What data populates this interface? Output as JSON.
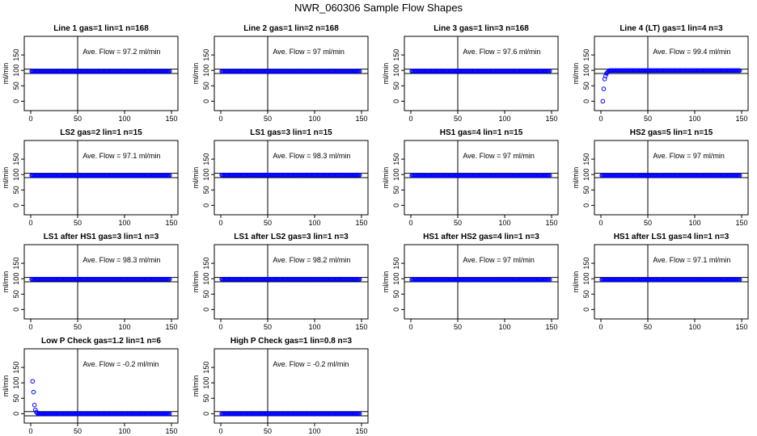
{
  "title": "NWR_060306  Sample Flow Shapes",
  "colors": {
    "points": "#0000ff",
    "axes": "#000000",
    "lines": "#000000"
  },
  "chart_data": [
    {
      "type": "scatter",
      "title": "Line 1 gas=1 lin=1 n=168",
      "ylabel": "ml/min",
      "annotation": "Ave. Flow =  97.2  ml/min",
      "xlim": [
        0,
        150
      ],
      "ylim": [
        -20,
        200
      ],
      "xticks": [
        "0",
        "50",
        "100",
        "150"
      ],
      "yticks": [
        "0",
        "50",
        "100",
        "150"
      ],
      "ref_lines_y": [
        90,
        104
      ],
      "ref_line_x": 50,
      "profile": "flat",
      "level": 97.2
    },
    {
      "type": "scatter",
      "title": "Line 2 gas=1 lin=2 n=168",
      "ylabel": "ml/min",
      "annotation": "Ave. Flow =  97  ml/min",
      "xlim": [
        0,
        150
      ],
      "ylim": [
        -20,
        200
      ],
      "xticks": [
        "0",
        "50",
        "100",
        "150"
      ],
      "yticks": [
        "0",
        "50",
        "100",
        "150"
      ],
      "ref_lines_y": [
        90,
        104
      ],
      "ref_line_x": 50,
      "profile": "flat",
      "level": 97
    },
    {
      "type": "scatter",
      "title": "Line 3 gas=1 lin=3 n=168",
      "ylabel": "ml/min",
      "annotation": "Ave. Flow =  97.6  ml/min",
      "xlim": [
        0,
        150
      ],
      "ylim": [
        -20,
        200
      ],
      "xticks": [
        "0",
        "50",
        "100",
        "150"
      ],
      "yticks": [
        "0",
        "50",
        "100",
        "150"
      ],
      "ref_lines_y": [
        90,
        104
      ],
      "ref_line_x": 50,
      "profile": "flat",
      "level": 97.6
    },
    {
      "type": "scatter",
      "title": "Line 4 (LT) gas=1 lin=4 n=3",
      "ylabel": "ml/min",
      "annotation": "Ave. Flow =  99.4  ml/min",
      "xlim": [
        0,
        150
      ],
      "ylim": [
        -20,
        200
      ],
      "xticks": [
        "0",
        "50",
        "100",
        "150"
      ],
      "yticks": [
        "0",
        "50",
        "100",
        "150"
      ],
      "ref_lines_y": [
        90,
        104
      ],
      "ref_line_x": 50,
      "profile": "rise",
      "level": 99.4,
      "start_points": [
        [
          2,
          0
        ],
        [
          3,
          40
        ],
        [
          4,
          72
        ],
        [
          5,
          82
        ],
        [
          6,
          90
        ],
        [
          7,
          94
        ],
        [
          8,
          96
        ]
      ]
    },
    {
      "type": "scatter",
      "title": "LS2 gas=2 lin=1 n=15",
      "ylabel": "ml/min",
      "annotation": "Ave. Flow =  97.1  ml/min",
      "xlim": [
        0,
        150
      ],
      "ylim": [
        -20,
        200
      ],
      "xticks": [
        "0",
        "50",
        "100",
        "150"
      ],
      "yticks": [
        "0",
        "50",
        "100",
        "150"
      ],
      "ref_lines_y": [
        90,
        104
      ],
      "ref_line_x": 50,
      "profile": "flat",
      "level": 97.1
    },
    {
      "type": "scatter",
      "title": "LS1 gas=3 lin=1 n=15",
      "ylabel": "ml/min",
      "annotation": "Ave. Flow =  98.3  ml/min",
      "xlim": [
        0,
        150
      ],
      "ylim": [
        -20,
        200
      ],
      "xticks": [
        "0",
        "50",
        "100",
        "150"
      ],
      "yticks": [
        "0",
        "50",
        "100",
        "150"
      ],
      "ref_lines_y": [
        90,
        104
      ],
      "ref_line_x": 50,
      "profile": "flat",
      "level": 98.3
    },
    {
      "type": "scatter",
      "title": "HS1 gas=4 lin=1 n=15",
      "ylabel": "ml/min",
      "annotation": "Ave. Flow =  97  ml/min",
      "xlim": [
        0,
        150
      ],
      "ylim": [
        -20,
        200
      ],
      "xticks": [
        "0",
        "50",
        "100",
        "150"
      ],
      "yticks": [
        "0",
        "50",
        "100",
        "150"
      ],
      "ref_lines_y": [
        90,
        104
      ],
      "ref_line_x": 50,
      "profile": "flat",
      "level": 97
    },
    {
      "type": "scatter",
      "title": "HS2 gas=5 lin=1 n=15",
      "ylabel": "ml/min",
      "annotation": "Ave. Flow =  97  ml/min",
      "xlim": [
        0,
        150
      ],
      "ylim": [
        -20,
        200
      ],
      "xticks": [
        "0",
        "50",
        "100",
        "150"
      ],
      "yticks": [
        "0",
        "50",
        "100",
        "150"
      ],
      "ref_lines_y": [
        90,
        104
      ],
      "ref_line_x": 50,
      "profile": "flat",
      "level": 97
    },
    {
      "type": "scatter",
      "title": "LS1 after HS1 gas=3 lin=1 n=3",
      "ylabel": "ml/min",
      "annotation": "Ave. Flow =  98.3  ml/min",
      "xlim": [
        0,
        150
      ],
      "ylim": [
        -20,
        200
      ],
      "xticks": [
        "0",
        "50",
        "100",
        "150"
      ],
      "yticks": [
        "0",
        "50",
        "100",
        "150"
      ],
      "ref_lines_y": [
        90,
        104
      ],
      "ref_line_x": 50,
      "profile": "flat",
      "level": 98.3
    },
    {
      "type": "scatter",
      "title": "LS1 after LS2 gas=3 lin=1 n=3",
      "ylabel": "ml/min",
      "annotation": "Ave. Flow =  98.2  ml/min",
      "xlim": [
        0,
        150
      ],
      "ylim": [
        -20,
        200
      ],
      "xticks": [
        "0",
        "50",
        "100",
        "150"
      ],
      "yticks": [
        "0",
        "50",
        "100",
        "150"
      ],
      "ref_lines_y": [
        90,
        104
      ],
      "ref_line_x": 50,
      "profile": "flat",
      "level": 98.2
    },
    {
      "type": "scatter",
      "title": "HS1 after HS2 gas=4 lin=1 n=3",
      "ylabel": "ml/min",
      "annotation": "Ave. Flow =  97  ml/min",
      "xlim": [
        0,
        150
      ],
      "ylim": [
        -20,
        200
      ],
      "xticks": [
        "0",
        "50",
        "100",
        "150"
      ],
      "yticks": [
        "0",
        "50",
        "100",
        "150"
      ],
      "ref_lines_y": [
        90,
        104
      ],
      "ref_line_x": 50,
      "profile": "flat",
      "level": 97
    },
    {
      "type": "scatter",
      "title": "HS1 after LS1 gas=4 lin=1 n=3",
      "ylabel": "ml/min",
      "annotation": "Ave. Flow =  97.1  ml/min",
      "xlim": [
        0,
        150
      ],
      "ylim": [
        -20,
        200
      ],
      "xticks": [
        "0",
        "50",
        "100",
        "150"
      ],
      "yticks": [
        "0",
        "50",
        "100",
        "150"
      ],
      "ref_lines_y": [
        90,
        104
      ],
      "ref_line_x": 50,
      "profile": "flat",
      "level": 97.1
    },
    {
      "type": "scatter",
      "title": "Low P Check gas=1.2 lin=1 n=6",
      "ylabel": "ml/min",
      "annotation": "Ave. Flow =  -0.2  ml/min",
      "xlim": [
        0,
        150
      ],
      "ylim": [
        -20,
        200
      ],
      "xticks": [
        "0",
        "50",
        "100",
        "150"
      ],
      "yticks": [
        "0",
        "50",
        "100",
        "150"
      ],
      "ref_lines_y": [
        -7,
        7
      ],
      "ref_line_x": 50,
      "profile": "decay",
      "level": -0.2,
      "start_points": [
        [
          2,
          105
        ],
        [
          3,
          70
        ],
        [
          4,
          28
        ],
        [
          5,
          12
        ],
        [
          6,
          5
        ],
        [
          7,
          2
        ]
      ]
    },
    {
      "type": "scatter",
      "title": "High P Check gas=1 lin=0.8 n=3",
      "ylabel": "ml/min",
      "annotation": "Ave. Flow =  -0.2  ml/min",
      "xlim": [
        0,
        150
      ],
      "ylim": [
        -20,
        200
      ],
      "xticks": [
        "0",
        "50",
        "100",
        "150"
      ],
      "yticks": [
        "0",
        "50",
        "100",
        "150"
      ],
      "ref_lines_y": [
        -7,
        7
      ],
      "ref_line_x": 50,
      "profile": "flat",
      "level": -0.2
    }
  ]
}
